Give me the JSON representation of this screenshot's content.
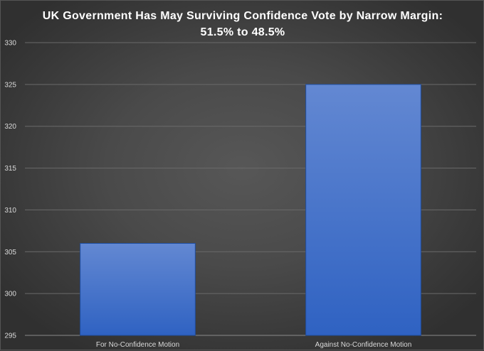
{
  "chart_data": {
    "type": "bar",
    "title_line1": "UK Government Has May Surviving Confidence Vote by Narrow Margin:",
    "title_line2": "51.5% to 48.5%",
    "categories": [
      "For No-Confidence Motion",
      "Against No-Confidence Motion"
    ],
    "values": [
      306,
      325
    ],
    "ylim": [
      295,
      330
    ],
    "yticks": [
      295,
      300,
      305,
      310,
      315,
      320,
      325,
      330
    ],
    "xlabel": "",
    "ylabel": "",
    "grid": true,
    "legend": "none",
    "colors": {
      "bar_top": "#6388d2",
      "bar_bottom": "#2f62c2",
      "bar_edge": "#1f4ea0",
      "grid": "#6a6a6a",
      "text": "#d9d9d9"
    }
  }
}
